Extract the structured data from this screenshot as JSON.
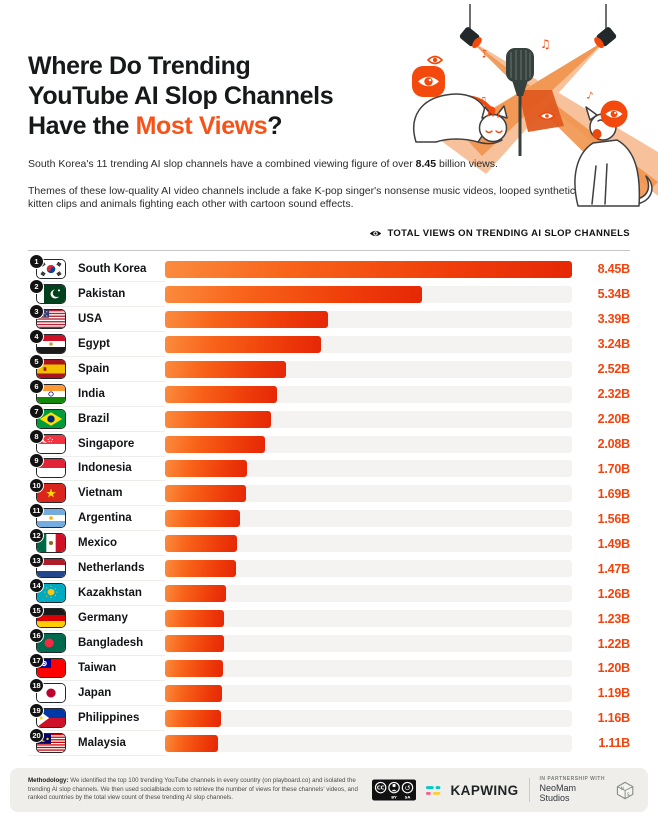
{
  "page": {
    "background": "#ffffff"
  },
  "colors": {
    "title_text": "#17181A",
    "title_accent": "#F75318",
    "value_accent": "#F3430C",
    "badge_accent": "#F4490D",
    "bar_gradient": [
      "#FB8B3E",
      "#F8641A",
      "#EF3E0A",
      "#E52706"
    ],
    "bar_track": "#F4F3F1",
    "footer_bg": "#EFEEEB",
    "rank_badge": "#121212"
  },
  "header": {
    "title_line1": "Where Do Trending",
    "title_line2": "YouTube AI Slop Channels",
    "title_line3_prefix": "Have the ",
    "title_line3_accent": "Most Views",
    "title_line3_suffix": "?",
    "para1_prefix": "South Korea's 11 trending AI slop channels have a combined viewing figure of over ",
    "para1_bold": "8.45",
    "para1_suffix": " billion views.",
    "para2": "Themes of these low-quality AI video channels include a fake K-pop singer's nonsense music videos, looped synthetic kitten clips and animals fighting each other with cartoon sound effects."
  },
  "legend": {
    "icon": "eye-icon",
    "label": "TOTAL VIEWS ON TRENDING AI SLOP CHANNELS"
  },
  "chart_data": {
    "type": "bar",
    "orientation": "horizontal",
    "title": "Where Do Trending YouTube AI Slop Channels Have the Most Views?",
    "series_label": "Total views on trending AI slop channels",
    "unit": "billion views",
    "xlim": [
      0,
      8.45
    ],
    "grid": false,
    "legend_position": "top-right",
    "ranks": [
      1,
      2,
      3,
      4,
      5,
      6,
      7,
      8,
      9,
      10,
      11,
      12,
      13,
      14,
      15,
      16,
      17,
      18,
      19,
      20
    ],
    "categories": [
      "South Korea",
      "Pakistan",
      "USA",
      "Egypt",
      "Spain",
      "India",
      "Brazil",
      "Singapore",
      "Indonesia",
      "Vietnam",
      "Argentina",
      "Mexico",
      "Netherlands",
      "Kazakhstan",
      "Germany",
      "Bangladesh",
      "Taiwan",
      "Japan",
      "Philippines",
      "Malaysia"
    ],
    "flag_codes": [
      "kr",
      "pk",
      "us",
      "eg",
      "es",
      "in",
      "br",
      "sg",
      "id",
      "vn",
      "ar",
      "mx",
      "nl",
      "kz",
      "de",
      "bd",
      "tw",
      "jp",
      "ph",
      "my"
    ],
    "values": [
      8.45,
      5.34,
      3.39,
      3.24,
      2.52,
      2.32,
      2.2,
      2.08,
      1.7,
      1.69,
      1.56,
      1.49,
      1.47,
      1.26,
      1.23,
      1.22,
      1.2,
      1.19,
      1.16,
      1.11
    ],
    "value_labels": [
      "8.45B",
      "5.34B",
      "3.39B",
      "3.24B",
      "2.52B",
      "2.32B",
      "2.20B",
      "2.08B",
      "1.70B",
      "1.69B",
      "1.56B",
      "1.49B",
      "1.47B",
      "1.26B",
      "1.23B",
      "1.22B",
      "1.20B",
      "1.19B",
      "1.16B",
      "1.11B"
    ]
  },
  "footer": {
    "methodology_bold": "Methodology:",
    "methodology_text": " We identified the top 100 trending YouTube channels in every country (on playboard.co) and isolated the trending AI slop channels. We then used socialblade.com to retrieve the number of views for these channels' videos, and ranked countries by the total view count of these trending AI slop channels.",
    "license_labels": {
      "by": "BY",
      "sa": "SA",
      "cc": "CC"
    },
    "brand": "KAPWING",
    "partnership_label": "IN PARTNERSHIP WITH",
    "partner_name": "NeoMam Studios",
    "icons": [
      "cc-license-icon",
      "kapwing-bars-icon",
      "neomam-dice-icon"
    ]
  }
}
